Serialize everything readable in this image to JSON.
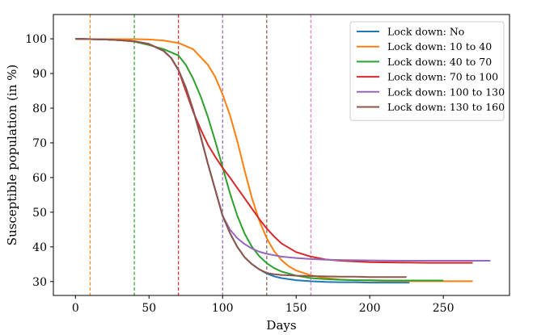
{
  "chart_data": {
    "type": "line",
    "title": "",
    "xlabel": "Days",
    "ylabel": "Susceptible population (in %)",
    "xlim": [
      -15,
      295
    ],
    "ylim": [
      26,
      107
    ],
    "xticks": [
      0,
      50,
      100,
      150,
      200,
      250
    ],
    "yticks": [
      30,
      40,
      50,
      60,
      70,
      80,
      90,
      100
    ],
    "grid": false,
    "legend_position": "top-right",
    "series": [
      {
        "name": "Lock down: No",
        "color": "#1f77b4",
        "x": [
          0,
          10,
          20,
          30,
          40,
          50,
          60,
          65,
          70,
          75,
          80,
          85,
          90,
          95,
          100,
          105,
          110,
          115,
          120,
          125,
          130,
          135,
          140,
          150,
          160,
          170,
          180,
          190,
          200,
          210,
          220,
          227
        ],
        "y": [
          100,
          99.9,
          99.8,
          99.6,
          99.3,
          98.5,
          96.5,
          94.5,
          91,
          86,
          79.5,
          72,
          64,
          56.5,
          49,
          44,
          40,
          37,
          35,
          33.5,
          32.3,
          31.5,
          31,
          30.4,
          30.1,
          29.9,
          29.8,
          29.8,
          29.7,
          29.7,
          29.7,
          29.7
        ]
      },
      {
        "name": "Lock down: 10 to 40",
        "color": "#ff7f0e",
        "vline": 10,
        "x": [
          0,
          10,
          20,
          30,
          40,
          50,
          60,
          70,
          80,
          90,
          95,
          100,
          105,
          110,
          115,
          120,
          125,
          130,
          135,
          140,
          145,
          150,
          160,
          170,
          180,
          190,
          200,
          210,
          220,
          230,
          240,
          250,
          260,
          270
        ],
        "y": [
          100,
          99.9,
          99.9,
          99.9,
          99.9,
          99.8,
          99.5,
          98.8,
          97,
          92.5,
          89,
          84,
          78,
          70.5,
          62,
          54,
          47.5,
          42.5,
          38.8,
          36.2,
          34.4,
          33.2,
          31.8,
          31,
          30.6,
          30.4,
          30.3,
          30.2,
          30.2,
          30.1,
          30.1,
          30.1,
          30.1,
          30.1
        ]
      },
      {
        "name": "Lock down: 40 to 70",
        "color": "#2ca02c",
        "vline": 40,
        "x": [
          0,
          10,
          20,
          30,
          40,
          50,
          60,
          70,
          75,
          80,
          85,
          90,
          95,
          100,
          105,
          110,
          115,
          120,
          125,
          130,
          135,
          140,
          150,
          160,
          170,
          180,
          190,
          200,
          210,
          220,
          230,
          240,
          250
        ],
        "y": [
          100,
          99.9,
          99.8,
          99.6,
          99.2,
          98.2,
          97,
          95.2,
          92.5,
          88.5,
          83.5,
          77.5,
          70.5,
          63,
          55.5,
          49,
          43.8,
          40,
          37.3,
          35.3,
          33.9,
          32.9,
          31.7,
          31,
          30.7,
          30.5,
          30.4,
          30.4,
          30.3,
          30.3,
          30.3,
          30.3,
          30.3
        ]
      },
      {
        "name": "Lock down: 70 to 100",
        "color": "#d62728",
        "vline": 70,
        "x": [
          0,
          10,
          20,
          30,
          40,
          50,
          60,
          65,
          70,
          75,
          80,
          85,
          90,
          95,
          100,
          105,
          110,
          115,
          120,
          125,
          130,
          135,
          140,
          150,
          160,
          170,
          180,
          190,
          200,
          220,
          240,
          260,
          270
        ],
        "y": [
          100,
          99.9,
          99.8,
          99.6,
          99.3,
          98.5,
          96.5,
          94.5,
          91,
          85,
          79,
          74,
          69.5,
          66,
          62.8,
          60,
          57,
          54,
          51,
          48,
          45.3,
          43,
          41,
          38.5,
          37.2,
          36.4,
          36,
          35.8,
          35.6,
          35.5,
          35.4,
          35.4,
          35.4
        ]
      },
      {
        "name": "Lock down: 100 to 130",
        "color": "#9467bd",
        "vline": 100,
        "x": [
          0,
          10,
          20,
          30,
          40,
          50,
          60,
          65,
          70,
          75,
          80,
          85,
          90,
          95,
          100,
          105,
          110,
          115,
          120,
          125,
          130,
          140,
          150,
          160,
          170,
          180,
          200,
          220,
          240,
          260,
          282
        ],
        "y": [
          100,
          99.9,
          99.8,
          99.6,
          99.3,
          98.5,
          96.5,
          94.5,
          91,
          86,
          79.5,
          72,
          64,
          56.5,
          49,
          45,
          42.5,
          40.8,
          39.5,
          38.6,
          38,
          37.2,
          36.8,
          36.5,
          36.3,
          36.2,
          36.1,
          36,
          36,
          36,
          36
        ]
      },
      {
        "name": "Lock down: 130 to 160",
        "color": "#8c564b",
        "vline": 130,
        "x": [
          0,
          10,
          20,
          30,
          40,
          50,
          60,
          65,
          70,
          75,
          80,
          85,
          90,
          95,
          100,
          105,
          110,
          115,
          120,
          125,
          130,
          135,
          140,
          150,
          160,
          170,
          180,
          190,
          200,
          210,
          225
        ],
        "y": [
          100,
          99.9,
          99.8,
          99.6,
          99.3,
          98.5,
          96.5,
          94.5,
          91,
          86,
          79.5,
          72,
          64,
          56.5,
          49,
          44,
          40,
          37,
          35,
          33.5,
          32.5,
          32.1,
          31.9,
          31.7,
          31.6,
          31.5,
          31.4,
          31.4,
          31.3,
          31.3,
          31.3
        ]
      }
    ],
    "extra_vlines": [
      {
        "x": 160,
        "color": "#e377c2"
      }
    ]
  }
}
